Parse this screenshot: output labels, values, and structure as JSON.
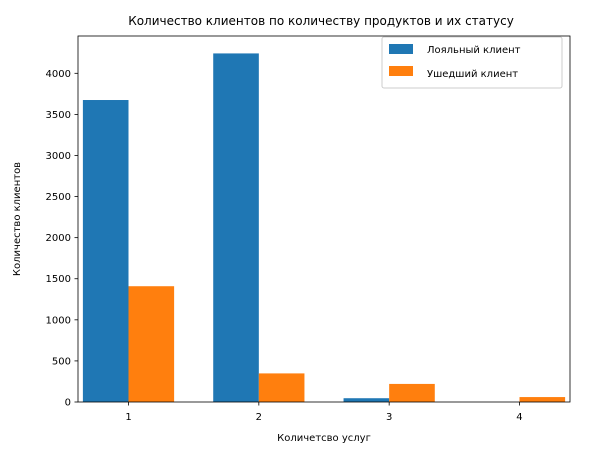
{
  "chart_data": {
    "type": "bar",
    "title": "Количество клиентов по количеству продуктов и их статусу",
    "xlabel": "Количетсво услуг",
    "ylabel": "Количество клиентов",
    "categories": [
      "1",
      "2",
      "3",
      "4"
    ],
    "series": [
      {
        "name": "Лояльный клиент",
        "color": "#1f77b4",
        "values": [
          3675,
          4242,
          46,
          0
        ]
      },
      {
        "name": "Ушедший клиент",
        "color": "#ff7f0e",
        "values": [
          1409,
          348,
          220,
          60
        ]
      }
    ],
    "ylim": [
      0,
      4454
    ],
    "yticks": [
      0,
      500,
      1000,
      1500,
      2000,
      2500,
      3000,
      3500,
      4000
    ],
    "grid": false,
    "legend": "top-right"
  }
}
